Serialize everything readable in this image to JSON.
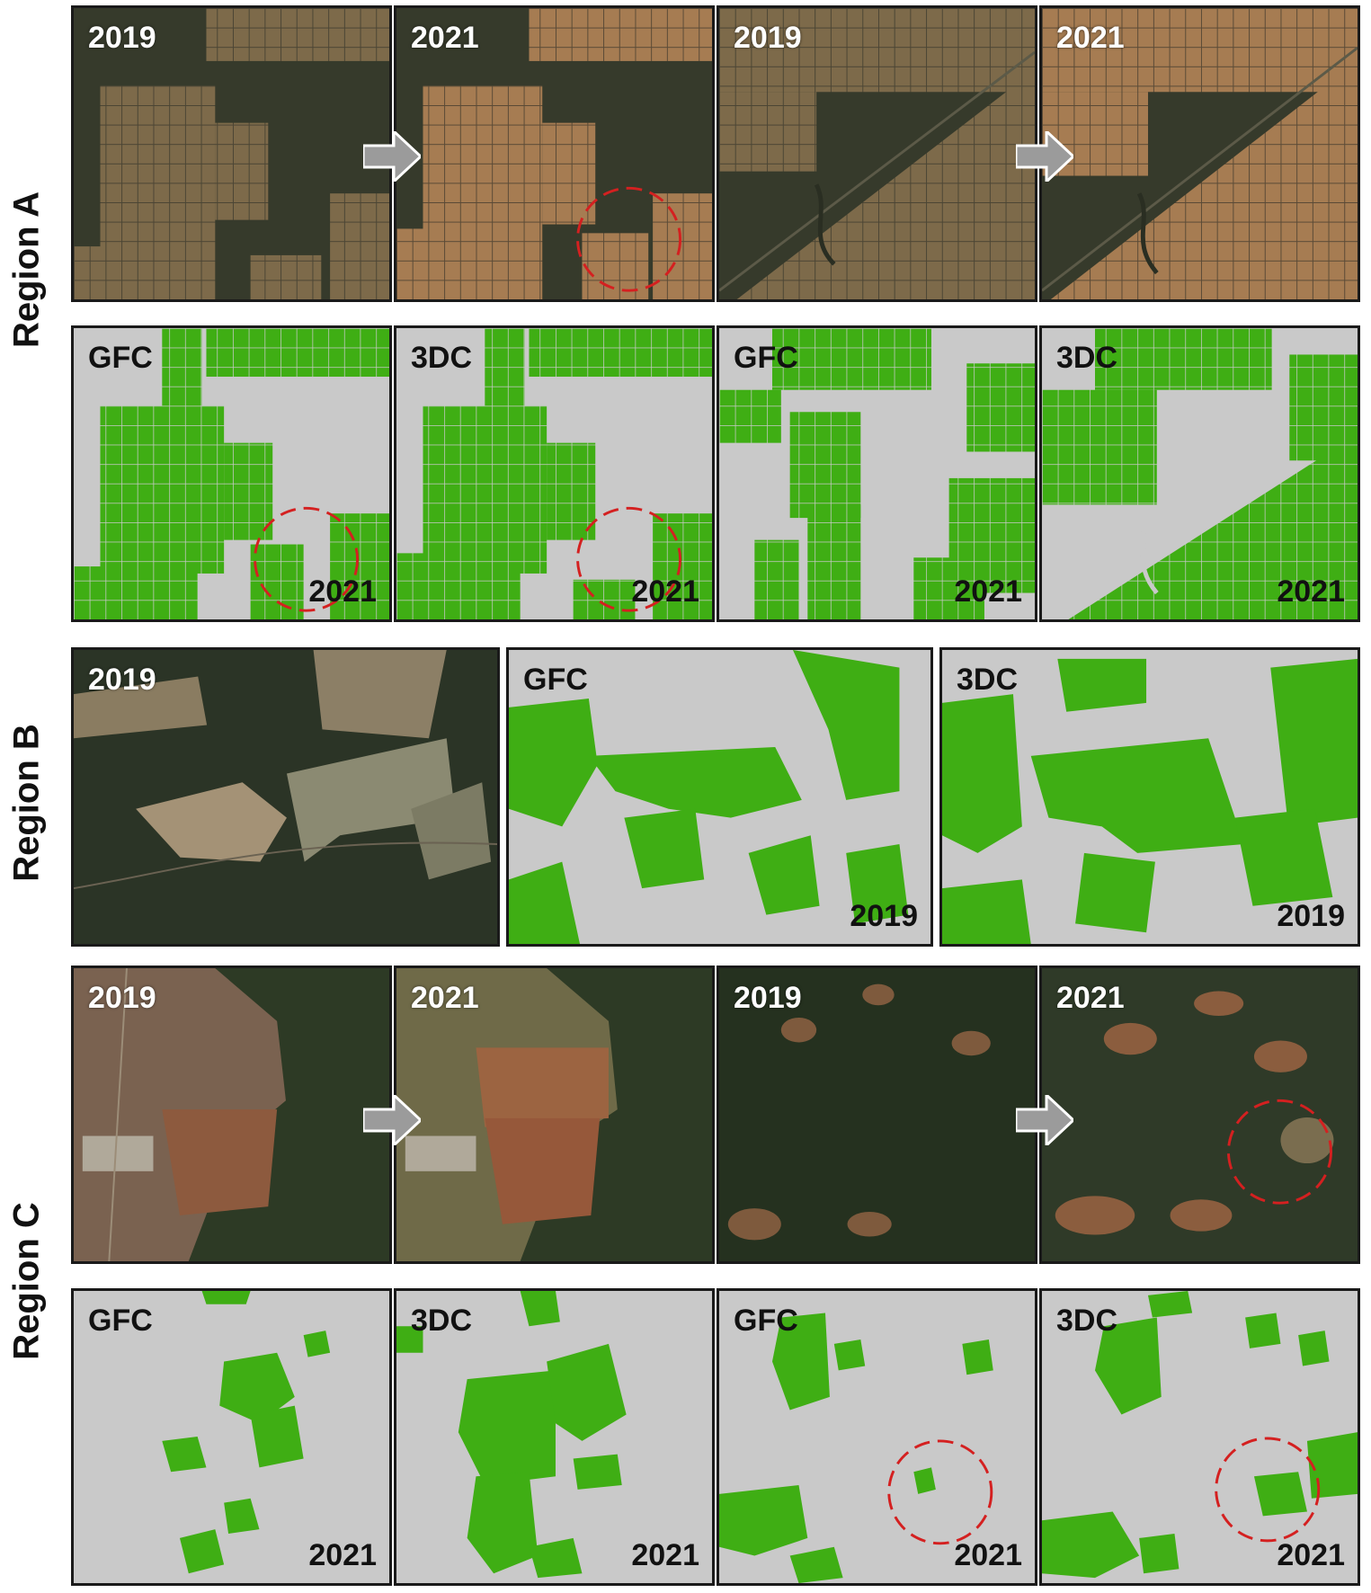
{
  "region_labels": [
    "Region A",
    "Region B",
    "Region C"
  ],
  "regionA": {
    "imagery": [
      "2019",
      "2021",
      "2019",
      "2021"
    ],
    "masks": [
      {
        "product": "GFC",
        "year": "2021"
      },
      {
        "product": "3DC",
        "year": "2021"
      },
      {
        "product": "GFC",
        "year": "2021"
      },
      {
        "product": "3DC",
        "year": "2021"
      }
    ]
  },
  "regionB": {
    "imagery": [
      "2019"
    ],
    "masks": [
      {
        "product": "GFC",
        "year": "2019"
      },
      {
        "product": "3DC",
        "year": "2019"
      }
    ]
  },
  "regionC": {
    "imagery": [
      "2019",
      "2021",
      "2019",
      "2021"
    ],
    "masks": [
      {
        "product": "GFC",
        "year": "2021"
      },
      {
        "product": "3DC",
        "year": "2021"
      },
      {
        "product": "GFC",
        "year": "2021"
      },
      {
        "product": "3DC",
        "year": "2021"
      }
    ]
  },
  "colors": {
    "mask_background": "#c9c9c9",
    "forest_green": "#3fae14",
    "highlight_circle": "#d42020",
    "arrow": "#9b9b9b"
  }
}
